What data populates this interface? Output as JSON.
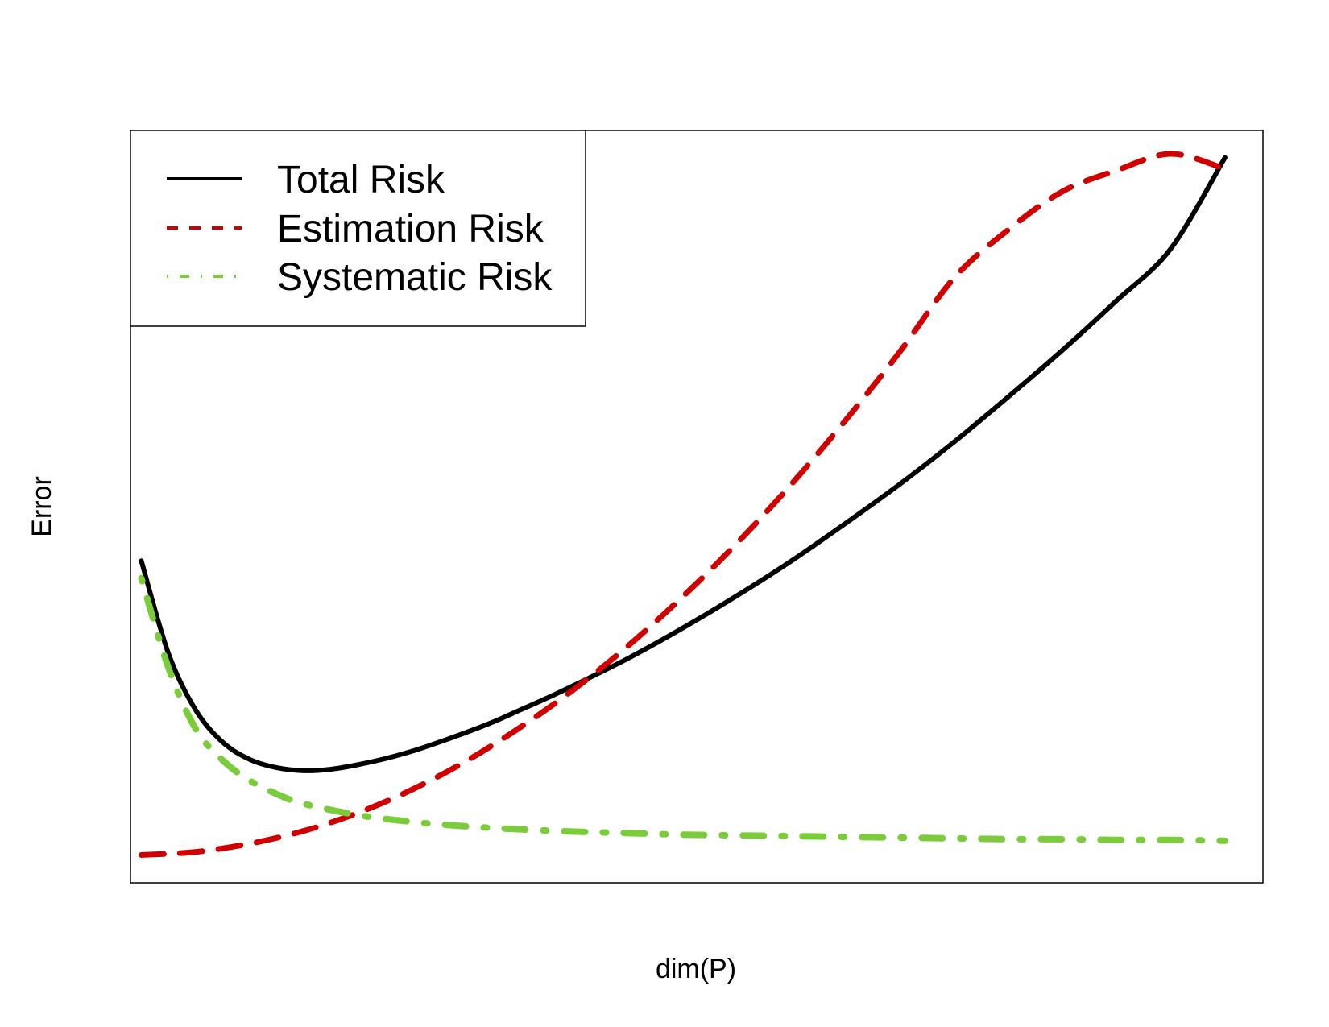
{
  "chart_data": {
    "type": "line",
    "title": "",
    "xlabel": "dim(P)",
    "ylabel": "Error",
    "x_ticks_shown": false,
    "y_ticks_shown": false,
    "xlim": [
      0.8,
      21.7
    ],
    "ylim": [
      0,
      1.0
    ],
    "grid": false,
    "legend_position": "top-left",
    "series": [
      {
        "name": "Total Risk",
        "color": "#000000",
        "dash": "solid",
        "x": [
          1,
          1.5,
          2,
          2.5,
          3,
          3.5,
          4,
          4.5,
          5,
          5.5,
          6,
          6.5,
          7,
          7.5,
          8,
          8.5,
          9,
          10,
          11,
          12,
          13,
          14,
          15,
          16,
          17,
          18,
          19,
          20,
          21
        ],
        "y": [
          0.428,
          0.305,
          0.23,
          0.187,
          0.164,
          0.153,
          0.149,
          0.151,
          0.157,
          0.165,
          0.175,
          0.187,
          0.2,
          0.214,
          0.23,
          0.246,
          0.263,
          0.299,
          0.339,
          0.382,
          0.428,
          0.478,
          0.53,
          0.586,
          0.646,
          0.708,
          0.774,
          0.843,
          0.964
        ]
      },
      {
        "name": "Estimation Risk",
        "color": "#d10000",
        "dash": "dashed",
        "x": [
          1,
          2,
          3,
          4,
          5,
          6,
          7,
          8,
          9,
          10,
          11,
          12,
          13,
          14,
          15,
          16,
          17,
          18,
          19,
          20,
          21
        ],
        "y": [
          0.037,
          0.041,
          0.052,
          0.069,
          0.093,
          0.124,
          0.162,
          0.207,
          0.258,
          0.316,
          0.381,
          0.452,
          0.53,
          0.615,
          0.706,
          0.804,
          0.868,
          0.919,
          0.947,
          0.969,
          0.949
        ]
      },
      {
        "name": "Systematic Risk",
        "color": "#7acc3a",
        "dash": "dot-dash",
        "x": [
          1,
          1.5,
          2,
          2.5,
          3,
          3.5,
          4,
          5,
          6,
          7,
          8,
          9,
          10,
          11,
          12,
          13,
          14,
          15,
          16,
          17,
          18,
          19,
          20,
          21
        ],
        "y": [
          0.405,
          0.286,
          0.205,
          0.163,
          0.136,
          0.118,
          0.105,
          0.09,
          0.081,
          0.075,
          0.071,
          0.068,
          0.066,
          0.064,
          0.063,
          0.062,
          0.061,
          0.06,
          0.059,
          0.058,
          0.058,
          0.057,
          0.057,
          0.056
        ]
      }
    ]
  }
}
